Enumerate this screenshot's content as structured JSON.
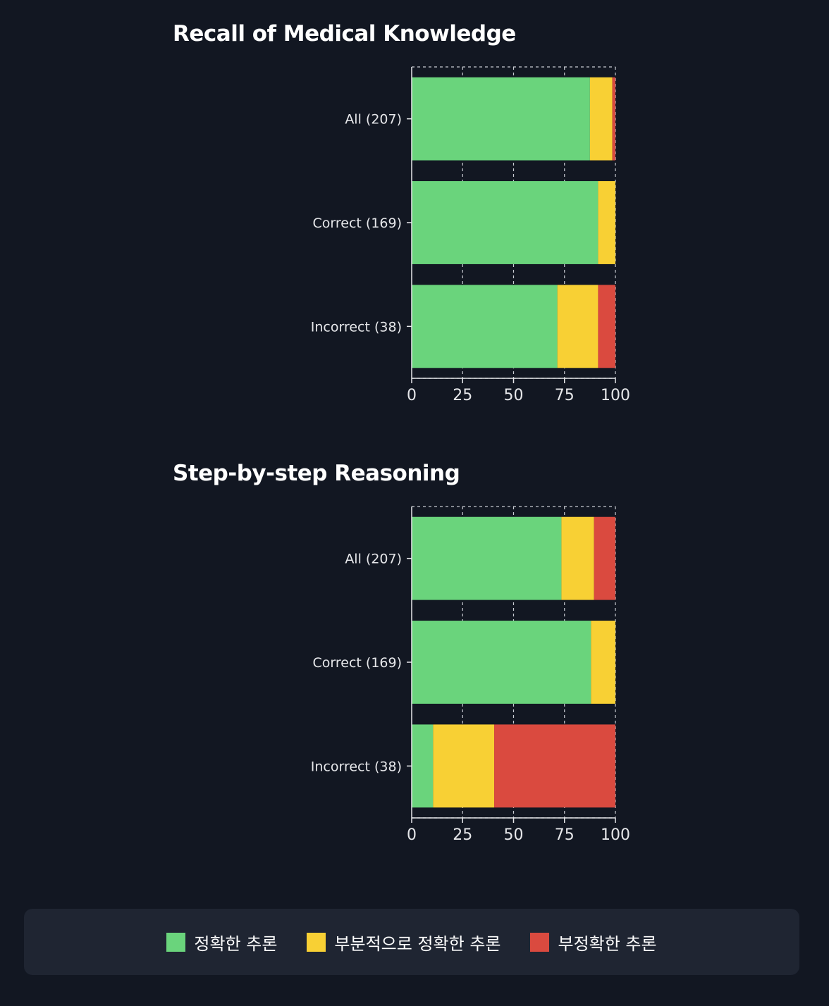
{
  "chart_data": [
    {
      "type": "bar",
      "orientation": "horizontal",
      "stacked": true,
      "title": "Recall of Medical Knowledge",
      "categories": [
        "All (207)",
        "Correct (169)",
        "Incorrect (38)"
      ],
      "series": [
        {
          "name": "정확한 추론",
          "values": [
            87.5,
            91.5,
            71.5
          ]
        },
        {
          "name": "부분적으로 정확한 추론",
          "values": [
            11,
            8.5,
            20
          ]
        },
        {
          "name": "부정확한 추론",
          "values": [
            1.5,
            0,
            8.5
          ]
        }
      ],
      "xlim": [
        0,
        100
      ],
      "xticks": [
        "0",
        "25",
        "50",
        "75",
        "100"
      ],
      "grid": true
    },
    {
      "type": "bar",
      "orientation": "horizontal",
      "stacked": true,
      "title": "Step-by-step Reasoning",
      "categories": [
        "All (207)",
        "Correct (169)",
        "Incorrect (38)"
      ],
      "series": [
        {
          "name": "정확한 추론",
          "values": [
            73.5,
            88,
            10.5
          ]
        },
        {
          "name": "부분적으로 정확한 추론",
          "values": [
            16,
            12,
            30
          ]
        },
        {
          "name": "부정확한 추론",
          "values": [
            10.5,
            0,
            59.5
          ]
        }
      ],
      "xlim": [
        0,
        100
      ],
      "xticks": [
        "0",
        "25",
        "50",
        "75",
        "100"
      ],
      "grid": true
    }
  ],
  "colors": {
    "correct": "#6ad47c",
    "partial": "#f8d034",
    "incorrect": "#da4a3f",
    "grid": "#c9ccd3",
    "axis": "#e6e7ea"
  },
  "legend": {
    "placement": "bottom",
    "items": [
      {
        "label": "정확한 추론",
        "color": "#6ad47c"
      },
      {
        "label": "부분적으로 정확한 추론",
        "color": "#f8d034"
      },
      {
        "label": "부정확한 추론",
        "color": "#da4a3f"
      }
    ]
  }
}
